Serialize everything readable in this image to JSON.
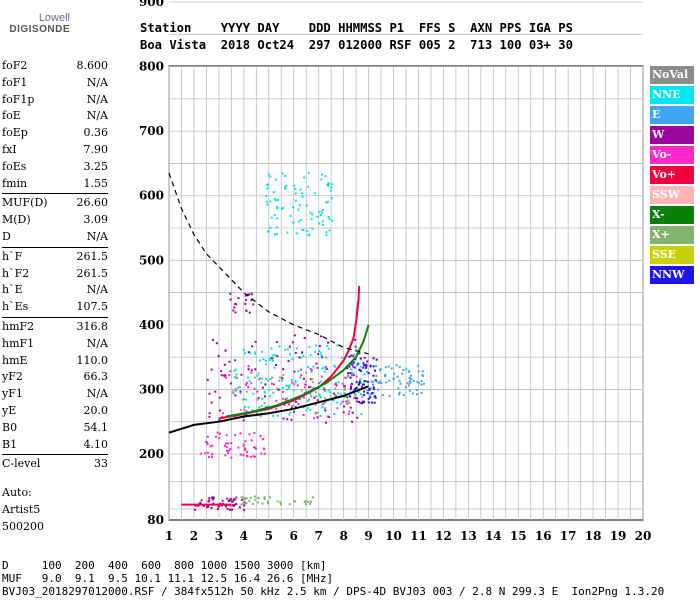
{
  "logo": {
    "line1": "Lowell",
    "line2": "DIGISONDE"
  },
  "header": {
    "row1": "Station    YYYY DAY    DDD HHMMSS P1  FFS S  AXN PPS IGA PS",
    "row2": "Boa Vista  2018 Oct24  297 012000 RSF 005 2  713 100 03+ 30"
  },
  "params": [
    [
      {
        "n": "foF2",
        "v": "8.600"
      },
      {
        "n": "foF1",
        "v": "N/A"
      },
      {
        "n": "foF1p",
        "v": "N/A"
      },
      {
        "n": "foE",
        "v": "N/A"
      },
      {
        "n": "foEp",
        "v": "0.36"
      },
      {
        "n": "fxI",
        "v": "7.90"
      },
      {
        "n": "foEs",
        "v": "3.25"
      },
      {
        "n": "fmin",
        "v": "1.55"
      }
    ],
    [
      {
        "n": "MUF(D)",
        "v": "26.60"
      },
      {
        "n": "M(D)",
        "v": "3.09"
      },
      {
        "n": "D",
        "v": "N/A"
      }
    ],
    [
      {
        "n": "h`F",
        "v": "261.5"
      },
      {
        "n": "h`F2",
        "v": "261.5"
      },
      {
        "n": "h`E",
        "v": "N/A"
      },
      {
        "n": "h`Es",
        "v": "107.5"
      }
    ],
    [
      {
        "n": "hmF2",
        "v": "316.8"
      },
      {
        "n": "hmF1",
        "v": "N/A"
      },
      {
        "n": "hmE",
        "v": "110.0"
      },
      {
        "n": "yF2",
        "v": "66.3"
      },
      {
        "n": "yF1",
        "v": "N/A"
      },
      {
        "n": "yE",
        "v": "20.0"
      },
      {
        "n": "B0",
        "v": "54.1"
      },
      {
        "n": "B1",
        "v": "4.10"
      }
    ],
    [
      {
        "n": "C-level",
        "v": "33"
      }
    ]
  ],
  "auto": {
    "line1": "Auto:",
    "line2": "Artist5",
    "line3": "500200"
  },
  "legend": [
    {
      "label": "NoVal",
      "color": "#8c8c8c",
      "text": "#ffffff"
    },
    {
      "label": "NNE",
      "color": "#00e5ee",
      "text": "#ffffff"
    },
    {
      "label": "E",
      "color": "#3ea6f5",
      "text": "#ffffff"
    },
    {
      "label": "W",
      "color": "#9c059c",
      "text": "#ffffff"
    },
    {
      "label": "Vo-",
      "color": "#ff28c8",
      "text": "#ffffff"
    },
    {
      "label": "Vo+",
      "color": "#f0003c",
      "text": "#ffffff"
    },
    {
      "label": "SSW",
      "color": "#ffb4b4",
      "text": "#ffffff"
    },
    {
      "label": "X-",
      "color": "#0a800a",
      "text": "#ffffff"
    },
    {
      "label": "X+",
      "color": "#82b46e",
      "text": "#ffffff"
    },
    {
      "label": "SSE",
      "color": "#c8d20a",
      "text": "#ffffff"
    },
    {
      "label": "NNW",
      "color": "#1e14e6",
      "text": "#ffffff"
    }
  ],
  "footer": {
    "line1": "D     100  200  400  600  800 1000 1500 3000 [km]",
    "line2": "MUF   9.0  9.1  9.5 10.1 11.1 12.5 16.4 26.6 [MHz]",
    "line3": "BVJ03_2018297012000.RSF / 384fx512h 50 kHz 2.5 km / DPS-4D BVJ03 003 / 2.8 N 299.3 E  Ion2Png 1.3.20"
  },
  "chart_data": {
    "type": "scatter",
    "title": "",
    "xlabel": "",
    "ylabel": "",
    "xlim": [
      1,
      20
    ],
    "ylim": [
      80,
      900
    ],
    "xticks": [
      1,
      2,
      3,
      4,
      5,
      6,
      7,
      8,
      9,
      10,
      11,
      12,
      13,
      14,
      15,
      16,
      17,
      18,
      19,
      20
    ],
    "yticks": [
      80,
      200,
      300,
      400,
      500,
      600,
      700,
      800,
      900
    ],
    "grid": true,
    "traces": [
      {
        "name": "trace-vertical-o",
        "color": "#f0003c",
        "points": [
          [
            3.0,
            255
          ],
          [
            4.0,
            262
          ],
          [
            5.0,
            270
          ],
          [
            6.0,
            283
          ],
          [
            7.0,
            303
          ],
          [
            7.5,
            320
          ],
          [
            8.0,
            345
          ],
          [
            8.2,
            360
          ],
          [
            8.4,
            380
          ],
          [
            8.5,
            405
          ],
          [
            8.6,
            440
          ],
          [
            8.62,
            460
          ]
        ]
      },
      {
        "name": "trace-x",
        "color": "#0a800a",
        "points": [
          [
            3.3,
            258
          ],
          [
            4.3,
            265
          ],
          [
            5.3,
            275
          ],
          [
            6.3,
            290
          ],
          [
            7.3,
            310
          ],
          [
            8.0,
            330
          ],
          [
            8.5,
            350
          ],
          [
            8.8,
            375
          ],
          [
            9.0,
            400
          ]
        ]
      },
      {
        "name": "trace-scaled-hv",
        "color": "#000000",
        "points": [
          [
            1,
            233
          ],
          [
            2,
            245
          ],
          [
            3,
            250
          ],
          [
            4,
            258
          ],
          [
            5,
            263
          ],
          [
            6,
            270
          ],
          [
            7,
            280
          ],
          [
            8,
            290
          ],
          [
            9,
            305
          ]
        ]
      },
      {
        "name": "trace-mufd",
        "color": "#000000",
        "dashed": true,
        "points": [
          [
            1,
            635
          ],
          [
            1.5,
            580
          ],
          [
            2,
            540
          ],
          [
            2.5,
            510
          ],
          [
            3,
            490
          ],
          [
            4,
            450
          ],
          [
            5,
            420
          ],
          [
            6,
            400
          ],
          [
            7,
            385
          ],
          [
            8,
            365
          ],
          [
            9,
            355
          ]
        ]
      },
      {
        "name": "trace-es-layer",
        "color": "#f0003c",
        "points": [
          [
            1.5,
            108
          ],
          [
            2.2,
            108
          ],
          [
            3.0,
            108
          ],
          [
            3.5,
            108
          ]
        ]
      }
    ],
    "clusters": [
      {
        "name": "F-cusp-cyan",
        "color": "#00e5ee",
        "x": [
          3.5,
          8.8
        ],
        "y": [
          260,
          370
        ],
        "n": 140
      },
      {
        "name": "F-cusp-blue",
        "color": "#3ea6f5",
        "x": [
          8.2,
          11.2
        ],
        "y": [
          290,
          340
        ],
        "n": 90
      },
      {
        "name": "F-cusp-nnw",
        "color": "#1e14e6",
        "x": [
          8.0,
          9.3
        ],
        "y": [
          280,
          350
        ],
        "n": 70
      },
      {
        "name": "F-cusp-purple",
        "color": "#9c059c",
        "x": [
          2.5,
          9.0
        ],
        "y": [
          250,
          390
        ],
        "n": 110
      },
      {
        "name": "F-cusp-magenta",
        "color": "#ff28c8",
        "x": [
          3.0,
          8.5
        ],
        "y": [
          255,
          340
        ],
        "n": 70
      },
      {
        "name": "F-cusp-green",
        "color": "#82b46e",
        "x": [
          3.5,
          8.5
        ],
        "y": [
          260,
          330
        ],
        "n": 60
      },
      {
        "name": "multi-hop-cyan",
        "color": "#00e5ee",
        "x": [
          4.8,
          7.6
        ],
        "y": [
          540,
          640
        ],
        "n": 90
      },
      {
        "name": "es-spread",
        "color": "#ff28c8",
        "x": [
          2.2,
          4.8
        ],
        "y": [
          195,
          235
        ],
        "n": 60
      },
      {
        "name": "es-low",
        "color": "#9c059c",
        "x": [
          2.0,
          4.0
        ],
        "y": [
          100,
          125
        ],
        "n": 60
      },
      {
        "name": "es-low-green",
        "color": "#82b46e",
        "x": [
          3.5,
          6.8
        ],
        "y": [
          110,
          125
        ],
        "n": 40
      },
      {
        "name": "spread-purple-mid",
        "color": "#9c059c",
        "x": [
          3.2,
          4.5
        ],
        "y": [
          420,
          450
        ],
        "n": 20
      }
    ]
  }
}
